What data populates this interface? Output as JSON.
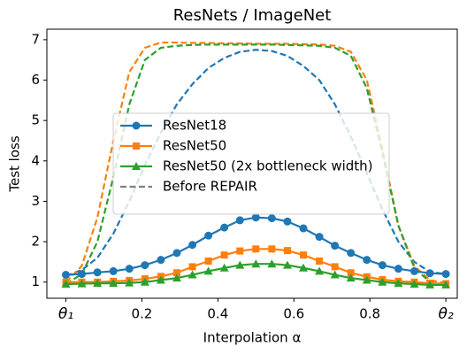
{
  "chart_data": {
    "type": "line",
    "title": "ResNets / ImageNet",
    "x_label": "Interpolation α",
    "y_label": "Test loss",
    "x": [
      0,
      0.042,
      0.083,
      0.125,
      0.167,
      0.208,
      0.25,
      0.292,
      0.333,
      0.375,
      0.417,
      0.458,
      0.5,
      0.542,
      0.583,
      0.625,
      0.667,
      0.708,
      0.75,
      0.792,
      0.833,
      0.875,
      0.917,
      0.958,
      1
    ],
    "series": [
      {
        "name": "ResNet18",
        "color": "#1f77b4",
        "marker": "circle",
        "values": [
          1.18,
          1.2,
          1.24,
          1.27,
          1.33,
          1.42,
          1.55,
          1.72,
          1.92,
          2.15,
          2.35,
          2.53,
          2.6,
          2.58,
          2.5,
          2.33,
          2.12,
          1.9,
          1.72,
          1.55,
          1.42,
          1.33,
          1.27,
          1.22,
          1.2
        ],
        "before_values": [
          1.15,
          1.3,
          1.6,
          2.2,
          3.0,
          3.9,
          4.7,
          5.4,
          5.9,
          6.3,
          6.55,
          6.7,
          6.75,
          6.72,
          6.6,
          6.35,
          6.0,
          5.4,
          4.6,
          3.7,
          2.8,
          2.0,
          1.5,
          1.25,
          1.2
        ]
      },
      {
        "name": "ResNet50",
        "color": "#ff7f0e",
        "marker": "square",
        "values": [
          1.0,
          1.0,
          1.0,
          1.02,
          1.04,
          1.08,
          1.14,
          1.23,
          1.38,
          1.52,
          1.67,
          1.77,
          1.82,
          1.82,
          1.78,
          1.67,
          1.52,
          1.38,
          1.23,
          1.13,
          1.06,
          1.02,
          1.0,
          0.97,
          0.96
        ],
        "before_values": [
          1.0,
          1.4,
          2.6,
          4.5,
          6.2,
          6.8,
          6.93,
          6.93,
          6.92,
          6.92,
          6.91,
          6.91,
          6.9,
          6.9,
          6.9,
          6.89,
          6.88,
          6.85,
          6.7,
          6.0,
          4.3,
          2.4,
          1.4,
          1.05,
          0.97
        ]
      },
      {
        "name": "ResNet50 (2x bottleneck width)",
        "color": "#2ca02c",
        "marker": "triangle",
        "values": [
          0.95,
          0.96,
          0.97,
          0.97,
          0.98,
          1.0,
          1.05,
          1.1,
          1.18,
          1.27,
          1.35,
          1.42,
          1.45,
          1.45,
          1.42,
          1.35,
          1.27,
          1.18,
          1.1,
          1.05,
          1.0,
          0.97,
          0.95,
          0.93,
          0.93
        ],
        "before_values": [
          0.95,
          1.2,
          2.0,
          3.6,
          5.4,
          6.5,
          6.8,
          6.85,
          6.87,
          6.88,
          6.88,
          6.88,
          6.88,
          6.88,
          6.87,
          6.86,
          6.85,
          6.8,
          6.6,
          5.8,
          4.2,
          2.4,
          1.35,
          1.0,
          0.93
        ]
      }
    ],
    "before_legend": {
      "name": "Before REPAIR",
      "color": "#7f7f7f"
    },
    "xlim": [
      -0.05,
      1.03
    ],
    "ylim": [
      0.6,
      7.26
    ],
    "xticks": [
      {
        "value": 0,
        "label": "θ₁"
      },
      0.2,
      0.4,
      0.6,
      0.8,
      {
        "value": 1,
        "label": "θ₂"
      }
    ],
    "yticks": [
      1,
      2,
      3,
      4,
      5,
      6,
      7
    ],
    "legend": "center"
  }
}
